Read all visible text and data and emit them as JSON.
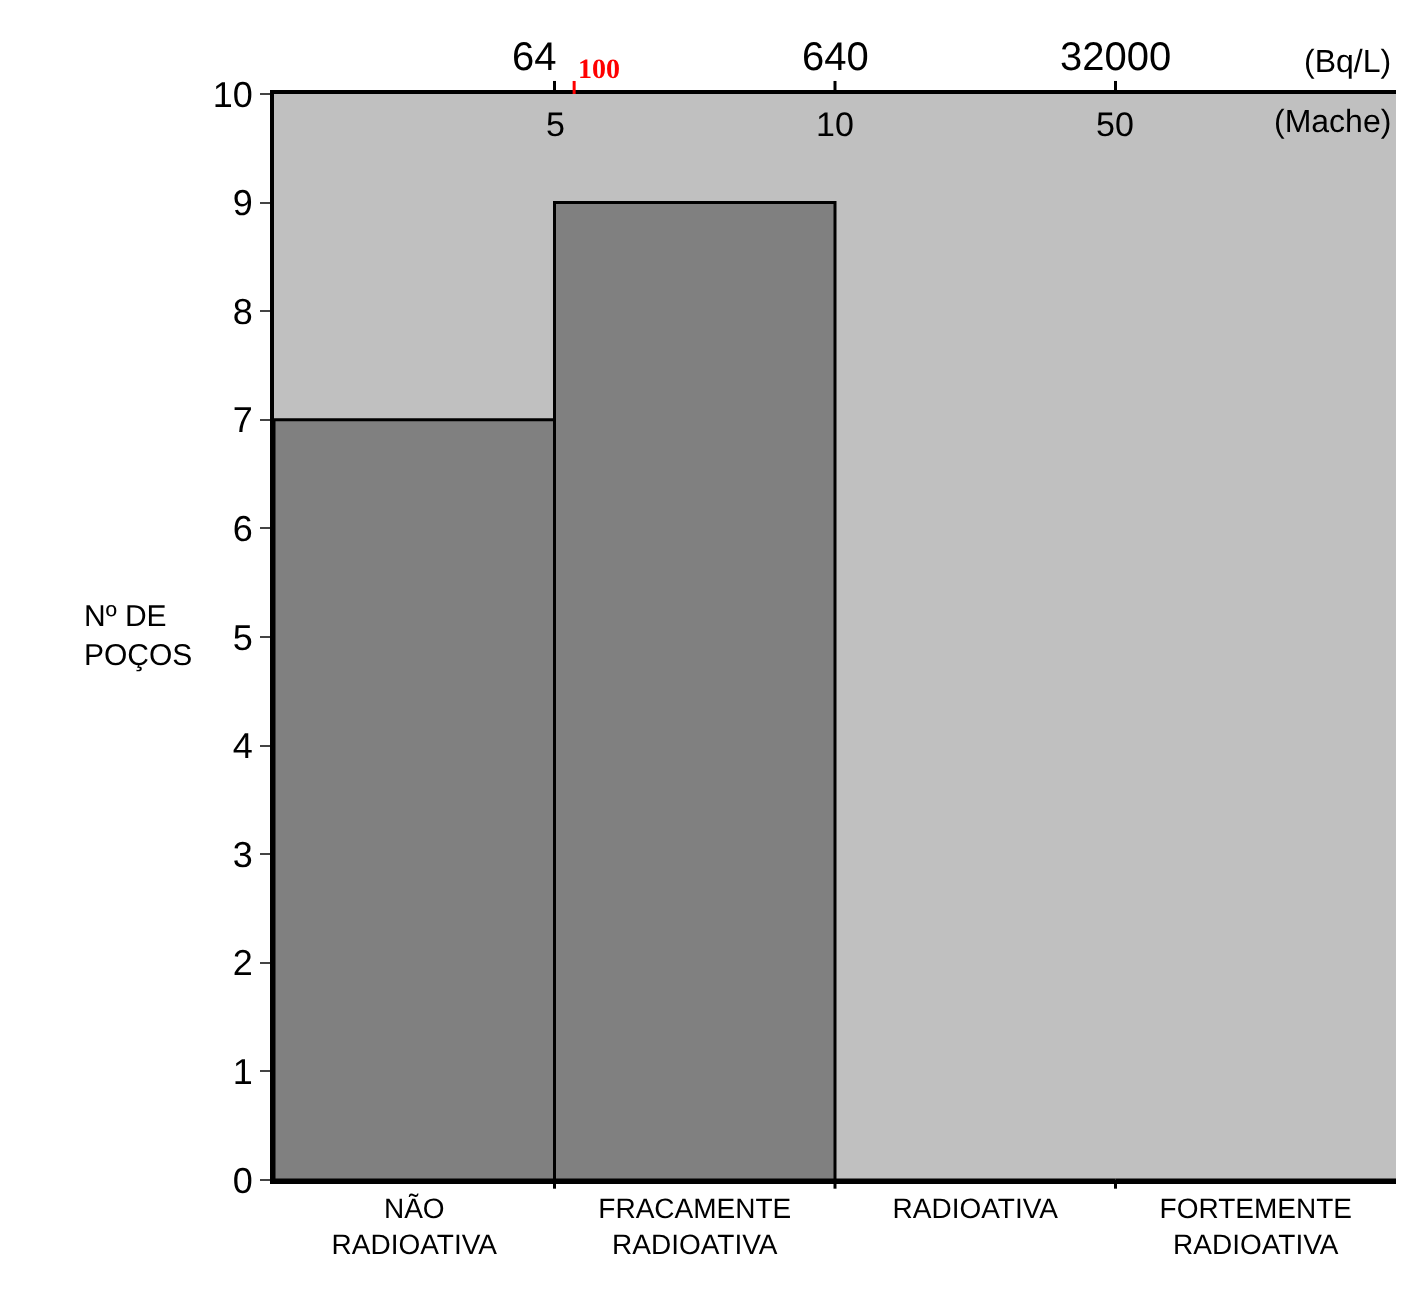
{
  "chart_data": {
    "type": "bar",
    "categories": [
      "NÃO\nRADIOATIVA",
      "FRACAMENTE\nRADIOATIVA",
      "RADIOATIVA",
      "FORTEMENTE\nRADIOATIVA"
    ],
    "values": [
      7,
      9,
      0,
      0
    ],
    "color": "#808080",
    "ylabel": "Nº DE\nPOÇOS",
    "ylim": [
      0,
      10
    ],
    "yticks": [
      0,
      1,
      2,
      3,
      4,
      5,
      6,
      7,
      8,
      9,
      10
    ],
    "annotations": [
      "64",
      "100",
      "640",
      "32000",
      "(Bq/L)",
      "5",
      "10",
      "50",
      "(Mache)"
    ],
    "grid": false,
    "legend": false
  }
}
